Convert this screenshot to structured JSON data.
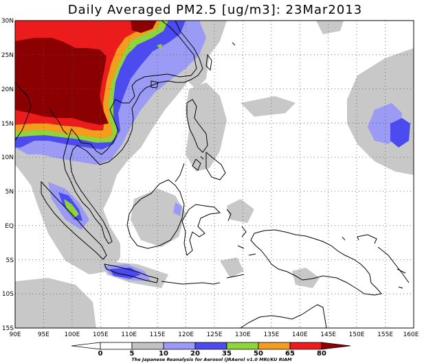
{
  "map": {
    "title": "Daily Averaged PM2.5 [ug/m3]: 23Mar2013",
    "lon_labels": [
      "90E",
      "95E",
      "100E",
      "105E",
      "110E",
      "115E",
      "120E",
      "125E",
      "130E",
      "135E",
      "140E",
      "145E",
      "150E",
      "155E",
      "160E"
    ],
    "lat_labels": [
      "30N",
      "25N",
      "20N",
      "15N",
      "10N",
      "5N",
      "EQ",
      "5S",
      "10S",
      "15S"
    ],
    "extent": {
      "lon": [
        90,
        160
      ],
      "lat": [
        -15,
        30
      ]
    },
    "grid": "dotted lines every 5 degrees",
    "layers": {
      "land": "coastline outline",
      "pm25_field": "filled contours of daily mean PM2.5"
    }
  },
  "legend": {
    "ticks": [
      "0",
      "5",
      "10",
      "20",
      "35",
      "50",
      "65",
      "80"
    ],
    "colors": [
      "#ffffff",
      "#ffffff",
      "#c3c3c3",
      "#9b9bf5",
      "#4b4bf0",
      "#8ed43a",
      "#f39c1d",
      "#ed1c1c",
      "#8b0000"
    ],
    "credit": "The Japanese Reanalysis for Aerosol (JRAero) v1.0 MRI/KU RIAM"
  }
}
